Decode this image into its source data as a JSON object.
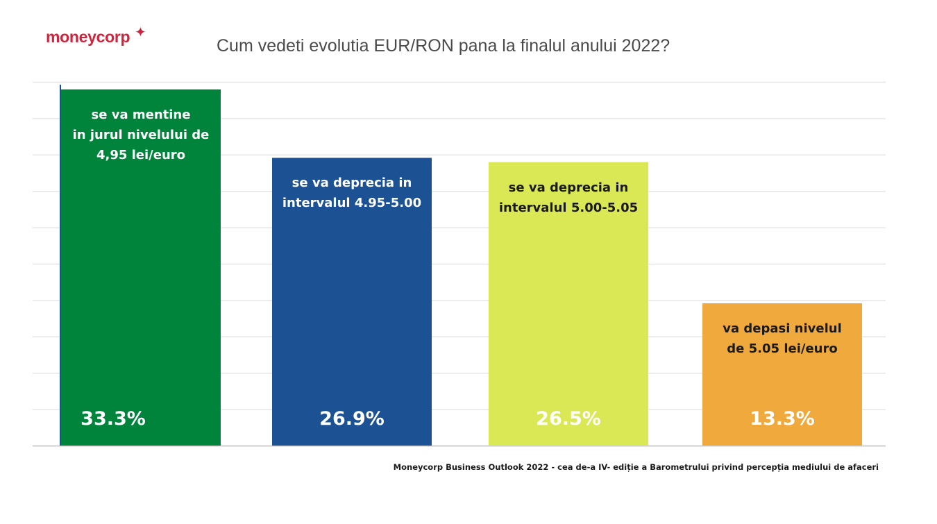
{
  "brand": {
    "logo_text": "moneycorp",
    "logo_star": "✦",
    "accent": "#d2233c"
  },
  "chart_data": {
    "type": "bar",
    "title": "Cum vedeti evolutia EUR/RON pana la finalul anului 2022?",
    "xlabel": "",
    "ylabel": "",
    "ylim": [
      0,
      34
    ],
    "grid": true,
    "categories": [
      "se va mentine in jurul nivelului de 4,95 lei/euro",
      "se va deprecia in intervalul 4.95-5.00",
      "se va deprecia in intervalul 5.00-5.05",
      "va depasi nivelul de 5.05 lei/euro"
    ],
    "label_lines": [
      [
        "se va mentine",
        "in jurul nivelului de",
        "4,95 lei/euro"
      ],
      [
        "se va deprecia in",
        "intervalul 4.95-5.00"
      ],
      [
        "se va deprecia in",
        "intervalul 5.00-5.05"
      ],
      [
        "va depasi nivelul",
        "de 5.05 lei/euro"
      ]
    ],
    "values": [
      33.3,
      26.9,
      26.5,
      13.3
    ],
    "value_labels": [
      "33.3%",
      "26.9%",
      "26.5%",
      "13.3%"
    ],
    "colors": [
      "#00843b",
      "#1c5294",
      "#dbe855",
      "#f0a93c"
    ],
    "label_dark": [
      false,
      false,
      true,
      true
    ]
  },
  "source": "Moneycorp Business Outlook 2022 - cea de-a IV- ediție a Barometrului privind percepția mediului de afaceri"
}
